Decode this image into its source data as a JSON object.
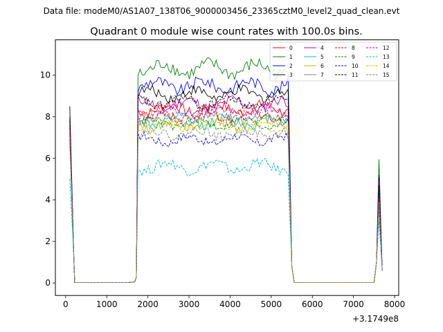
{
  "chart_data": {
    "type": "line",
    "suptitle": "Data file: modeM0/AS1A07_138T06_9000003456_23365cztM0_level2_quad_clean.evt",
    "title": "Quadrant 0 module wise count rates with 100.0s bins.",
    "xlabel": "",
    "ylabel": "",
    "x_offset_label": "+3.1749e8",
    "xlim": [
      -250,
      8100
    ],
    "ylim": [
      -0.6,
      11.7
    ],
    "x_ticks": [
      0,
      1000,
      2000,
      3000,
      4000,
      5000,
      6000,
      7000,
      8000
    ],
    "x_tick_labels": [
      "0",
      "1000",
      "2000",
      "3000",
      "4000",
      "5000",
      "6000",
      "7000",
      "8000"
    ],
    "y_ticks": [
      0,
      2,
      4,
      6,
      8,
      10
    ],
    "y_tick_labels": [
      "0",
      "2",
      "4",
      "6",
      "8",
      "10"
    ],
    "grid": false,
    "legend_position": "top-right",
    "legend_columns": 4,
    "note": "Each module series: high spike at start (~t=100), near zero 200-1650, active plateau ~1750-5450 around its level, zero 5550-7500, spike ~7600, falling to ~0.6 at 7700.",
    "series": [
      {
        "name": "0",
        "color": "#ff0000",
        "dash": "solid",
        "start": 7.9,
        "level": 8.4,
        "amp": 0.35,
        "spike": 4.5
      },
      {
        "name": "1",
        "color": "#008000",
        "dash": "solid",
        "start": 7.5,
        "level": 10.3,
        "amp": 0.45,
        "spike": 5.95
      },
      {
        "name": "2",
        "color": "#0000ff",
        "dash": "solid",
        "start": 8.0,
        "level": 9.5,
        "amp": 0.4,
        "spike": 5.2
      },
      {
        "name": "3",
        "color": "#000000",
        "dash": "solid",
        "start": 8.5,
        "level": 9.1,
        "amp": 0.35,
        "spike": 5.1
      },
      {
        "name": "4",
        "color": "#bf00bf",
        "dash": "solid",
        "start": 7.7,
        "level": 8.6,
        "amp": 0.4,
        "spike": 4.9
      },
      {
        "name": "5",
        "color": "#00bfbf",
        "dash": "solid",
        "start": 7.0,
        "level": 7.8,
        "amp": 0.35,
        "spike": 3.8
      },
      {
        "name": "6",
        "color": "#bfbf00",
        "dash": "solid",
        "start": 6.9,
        "level": 7.6,
        "amp": 0.35,
        "spike": 4.0
      },
      {
        "name": "7",
        "color": "#808080",
        "dash": "solid",
        "start": 7.1,
        "level": 7.9,
        "amp": 0.3,
        "spike": 4.2
      },
      {
        "name": "8",
        "color": "#ff0000",
        "dash": "dashed",
        "start": 7.6,
        "level": 8.1,
        "amp": 0.35,
        "spike": 4.3
      },
      {
        "name": "9",
        "color": "#008000",
        "dash": "dashed",
        "start": 7.2,
        "level": 7.7,
        "amp": 0.3,
        "spike": 4.4
      },
      {
        "name": "10",
        "color": "#0000ff",
        "dash": "dashed",
        "start": 6.9,
        "level": 6.9,
        "amp": 0.3,
        "spike": 3.6
      },
      {
        "name": "11",
        "color": "#000000",
        "dash": "dashed",
        "start": 7.8,
        "level": 8.7,
        "amp": 0.35,
        "spike": 4.7
      },
      {
        "name": "12",
        "color": "#bf00bf",
        "dash": "dashed",
        "start": 7.3,
        "level": 8.2,
        "amp": 0.3,
        "spike": 4.1
      },
      {
        "name": "13",
        "color": "#00bfbf",
        "dash": "dashed",
        "start": 5.0,
        "level": 5.6,
        "amp": 0.35,
        "spike": 3.0
      },
      {
        "name": "14",
        "color": "#bfbf00",
        "dash": "dashed",
        "start": 7.0,
        "level": 7.6,
        "amp": 0.3,
        "spike": 3.9
      },
      {
        "name": "15",
        "color": "#808080",
        "dash": "dashed",
        "start": 6.8,
        "level": 7.2,
        "amp": 0.3,
        "spike": 3.7
      }
    ]
  }
}
